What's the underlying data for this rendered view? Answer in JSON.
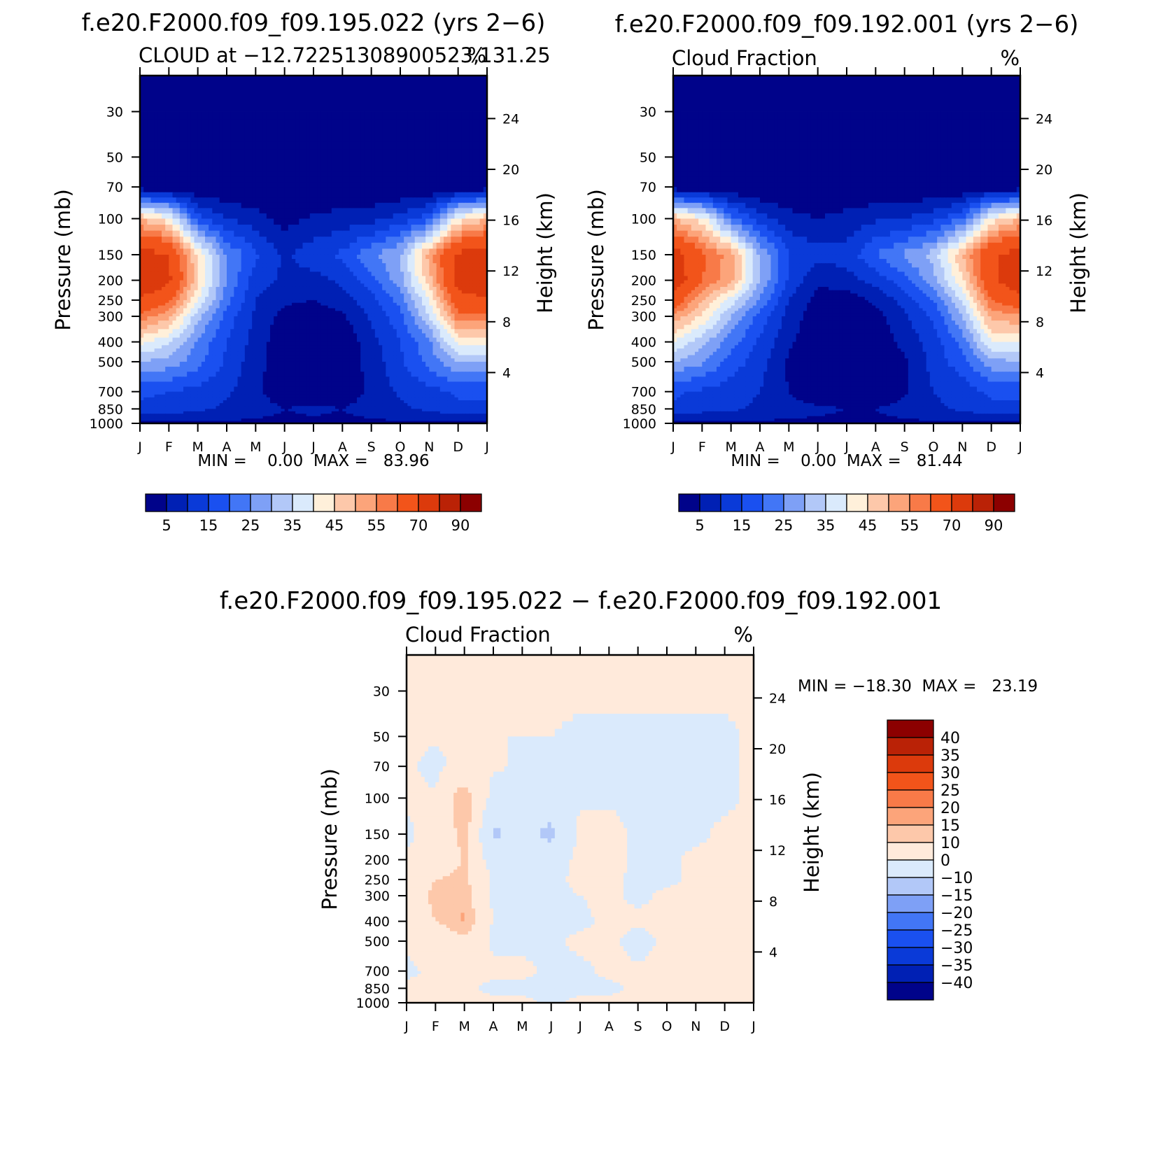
{
  "panels": [
    {
      "case_title": "f.e20.F2000.f09_f09.195.022 (yrs 2−6)",
      "left_string": "CLOUD at −12.72251308900523,131.25",
      "right_string": "%",
      "minmax": "MIN =    0.00  MAX =   83.96"
    },
    {
      "case_title": "f.e20.F2000.f09_f09.192.001 (yrs 2−6)",
      "left_string": "Cloud Fraction",
      "right_string": "%",
      "minmax": "MIN =    0.00  MAX =   81.44"
    },
    {
      "case_title": "f.e20.F2000.f09_f09.195.022 − f.e20.F2000.f09_f09.192.001",
      "left_string": "Cloud Fraction",
      "right_string": "%",
      "minmax": "MIN = −18.30  MAX =   23.19"
    }
  ],
  "colors": {
    "abs_scale": [
      "#00038a",
      "#0020b4",
      "#0a3ad8",
      "#1a50f0",
      "#4276f6",
      "#7ea0f6",
      "#b2c8f8",
      "#daeafc",
      "#fff0da",
      "#fdc8aa",
      "#fca47a",
      "#f87a48",
      "#f2541a",
      "#dc3a0c",
      "#ba2206",
      "#8c0000"
    ],
    "diff_scale": [
      "#00038a",
      "#0020b4",
      "#0a3ad8",
      "#1a50f0",
      "#4276f6",
      "#7ea0f6",
      "#b2c8f8",
      "#daeafc",
      "#ffeadb",
      "#fdc8aa",
      "#fca47a",
      "#f87a48",
      "#f2541a",
      "#dc3a0c",
      "#ba2206",
      "#8c0000"
    ]
  },
  "chart_data": [
    {
      "type": "heatmap",
      "title": "f.e20.F2000.f09_f09.195.022 (yrs 2−6)",
      "subtitle": "CLOUD at −12.72251308900523,131.25",
      "units": "%",
      "x": [
        "J",
        "F",
        "M",
        "A",
        "M",
        "J",
        "J",
        "A",
        "S",
        "O",
        "N",
        "D",
        "J"
      ],
      "ylabel": "Pressure (mb)",
      "yticks": [
        "30",
        "50",
        "70",
        "100",
        "150",
        "200",
        "250",
        "300",
        "400",
        "500",
        "700",
        "850",
        "1000"
      ],
      "ylabel_right": "Height (km)",
      "yticks_right": [
        "24",
        "20",
        "16",
        "12",
        "8",
        "4"
      ],
      "ylim": [
        1000,
        20
      ],
      "levels": [
        {
          "p": 30,
          "v": [
            0,
            0,
            0,
            0,
            0,
            0,
            0,
            0,
            0,
            0,
            0,
            0,
            0
          ]
        },
        {
          "p": 50,
          "v": [
            0,
            0,
            0,
            0,
            0,
            0,
            0,
            0,
            0,
            0,
            0,
            0,
            0
          ]
        },
        {
          "p": 70,
          "v": [
            1,
            1,
            0,
            0,
            0,
            0,
            0,
            0,
            0,
            0,
            0,
            1,
            1
          ]
        },
        {
          "p": 100,
          "v": [
            50,
            42,
            17,
            10,
            7,
            3,
            6,
            7,
            8,
            12,
            18,
            42,
            50
          ]
        },
        {
          "p": 150,
          "v": [
            75,
            70,
            45,
            25,
            16,
            9,
            13,
            16,
            24,
            30,
            52,
            72,
            75
          ]
        },
        {
          "p": 200,
          "v": [
            80,
            72,
            46,
            25,
            12,
            9,
            8,
            11,
            18,
            28,
            48,
            74,
            80
          ]
        },
        {
          "p": 250,
          "v": [
            68,
            62,
            40,
            22,
            10,
            6,
            5,
            8,
            13,
            22,
            40,
            66,
            68
          ]
        },
        {
          "p": 300,
          "v": [
            58,
            52,
            32,
            18,
            9,
            3,
            2,
            4,
            11,
            18,
            35,
            58,
            58
          ]
        },
        {
          "p": 400,
          "v": [
            42,
            36,
            24,
            15,
            8,
            1,
            0,
            1,
            8,
            15,
            24,
            42,
            42
          ]
        },
        {
          "p": 500,
          "v": [
            30,
            28,
            22,
            14,
            7,
            1,
            0,
            1,
            7,
            14,
            22,
            30,
            30
          ]
        },
        {
          "p": 700,
          "v": [
            16,
            15,
            13,
            11,
            6,
            2,
            1,
            2,
            6,
            11,
            13,
            16,
            16
          ]
        },
        {
          "p": 850,
          "v": [
            14,
            13,
            11,
            9,
            7,
            5,
            6,
            5,
            7,
            9,
            11,
            14,
            14
          ]
        },
        {
          "p": 1000,
          "v": [
            4,
            4,
            4,
            4,
            4,
            4,
            4,
            4,
            4,
            4,
            4,
            4,
            4
          ]
        }
      ],
      "colorbar": {
        "labels": [
          "5",
          "15",
          "25",
          "35",
          "45",
          "55",
          "70",
          "90"
        ]
      },
      "min": 0.0,
      "max": 83.96
    },
    {
      "type": "heatmap",
      "title": "f.e20.F2000.f09_f09.192.001 (yrs 2−6)",
      "subtitle": "Cloud Fraction",
      "units": "%",
      "x": [
        "J",
        "F",
        "M",
        "A",
        "M",
        "J",
        "J",
        "A",
        "S",
        "O",
        "N",
        "D",
        "J"
      ],
      "ylabel": "Pressure (mb)",
      "yticks": [
        "30",
        "50",
        "70",
        "100",
        "150",
        "200",
        "250",
        "300",
        "400",
        "500",
        "700",
        "850",
        "1000"
      ],
      "ylabel_right": "Height (km)",
      "yticks_right": [
        "24",
        "20",
        "16",
        "12",
        "8",
        "4"
      ],
      "ylim": [
        1000,
        20
      ],
      "levels": [
        {
          "p": 30,
          "v": [
            0,
            0,
            0,
            0,
            0,
            0,
            0,
            0,
            0,
            0,
            0,
            0,
            0
          ]
        },
        {
          "p": 50,
          "v": [
            0,
            0,
            0,
            0,
            0,
            0,
            0,
            0,
            0,
            0,
            0,
            0,
            0
          ]
        },
        {
          "p": 70,
          "v": [
            1,
            1,
            0,
            0,
            0,
            0,
            0,
            0,
            0,
            0,
            0,
            1,
            1
          ]
        },
        {
          "p": 100,
          "v": [
            50,
            42,
            22,
            12,
            7,
            5,
            7,
            9,
            10,
            13,
            20,
            42,
            50
          ]
        },
        {
          "p": 150,
          "v": [
            75,
            62,
            52,
            30,
            15,
            12,
            12,
            20,
            26,
            32,
            50,
            68,
            75
          ]
        },
        {
          "p": 200,
          "v": [
            78,
            60,
            52,
            30,
            14,
            6,
            8,
            12,
            18,
            28,
            44,
            68,
            78
          ]
        },
        {
          "p": 250,
          "v": [
            66,
            50,
            38,
            24,
            10,
            3,
            2,
            6,
            12,
            20,
            36,
            60,
            66
          ]
        },
        {
          "p": 300,
          "v": [
            54,
            44,
            30,
            18,
            8,
            2,
            1,
            3,
            9,
            16,
            30,
            52,
            54
          ]
        },
        {
          "p": 400,
          "v": [
            40,
            32,
            22,
            14,
            6,
            1,
            0,
            1,
            7,
            12,
            22,
            40,
            40
          ]
        },
        {
          "p": 500,
          "v": [
            30,
            26,
            18,
            12,
            4,
            1,
            0,
            1,
            4,
            12,
            18,
            28,
            30
          ]
        },
        {
          "p": 700,
          "v": [
            16,
            14,
            12,
            10,
            5,
            1,
            0,
            1,
            4,
            10,
            12,
            16,
            16
          ]
        },
        {
          "p": 850,
          "v": [
            14,
            12,
            11,
            9,
            7,
            6,
            5,
            5,
            7,
            9,
            11,
            14,
            14
          ]
        },
        {
          "p": 1000,
          "v": [
            4,
            4,
            4,
            4,
            4,
            4,
            4,
            4,
            4,
            4,
            4,
            4,
            4
          ]
        }
      ],
      "colorbar": {
        "labels": [
          "5",
          "15",
          "25",
          "35",
          "45",
          "55",
          "70",
          "90"
        ]
      },
      "min": 0.0,
      "max": 81.44
    },
    {
      "type": "heatmap",
      "title": "f.e20.F2000.f09_f09.195.022 − f.e20.F2000.f09_f09.192.001",
      "subtitle": "Cloud Fraction",
      "units": "%",
      "x": [
        "J",
        "F",
        "M",
        "A",
        "M",
        "J",
        "J",
        "A",
        "S",
        "O",
        "N",
        "D",
        "J"
      ],
      "ylabel": "Pressure (mb)",
      "yticks": [
        "30",
        "50",
        "70",
        "100",
        "150",
        "200",
        "250",
        "300",
        "400",
        "500",
        "700",
        "850",
        "1000"
      ],
      "ylabel_right": "Height (km)",
      "yticks_right": [
        "24",
        "20",
        "16",
        "12",
        "8",
        "4"
      ],
      "ylim": [
        1000,
        20
      ],
      "levels": [
        {
          "p": 30,
          "v": [
            1,
            1,
            1,
            1,
            1,
            1,
            1,
            1,
            1,
            1,
            1,
            1,
            1
          ]
        },
        {
          "p": 50,
          "v": [
            1,
            1,
            1,
            0,
            0,
            0,
            -1,
            -1,
            -1,
            -1,
            -1,
            -1,
            1
          ]
        },
        {
          "p": 70,
          "v": [
            1,
            -2,
            3,
            1,
            -1,
            0,
            -1,
            -1,
            -1,
            -1,
            -1,
            -1,
            1
          ]
        },
        {
          "p": 100,
          "v": [
            1,
            1,
            16,
            -3,
            -4,
            -3,
            -1,
            -1,
            -1,
            -1,
            -1,
            -1,
            1
          ]
        },
        {
          "p": 150,
          "v": [
            -1,
            2,
            13,
            -12,
            -6,
            -13,
            2,
            2,
            -1,
            -1,
            -1,
            1,
            1
          ]
        },
        {
          "p": 200,
          "v": [
            1,
            2,
            11,
            -5,
            -3,
            -4,
            2,
            2,
            -1,
            -1,
            1,
            1,
            1
          ]
        },
        {
          "p": 250,
          "v": [
            3,
            10,
            12,
            -1,
            -1,
            -1,
            1,
            1,
            -1,
            -1,
            1,
            1,
            1
          ]
        },
        {
          "p": 300,
          "v": [
            6,
            12,
            14,
            -1,
            -1,
            -1,
            0,
            1,
            -1,
            1,
            1,
            1,
            1
          ]
        },
        {
          "p": 400,
          "v": [
            2,
            10,
            16,
            -1,
            -1,
            -1,
            -1,
            1,
            1,
            1,
            1,
            1,
            1
          ]
        },
        {
          "p": 500,
          "v": [
            1,
            2,
            8,
            -1,
            -1,
            -1,
            1,
            1,
            -2,
            1,
            1,
            1,
            1
          ]
        },
        {
          "p": 700,
          "v": [
            -1,
            1,
            1,
            1,
            1,
            -1,
            -1,
            1,
            1,
            1,
            1,
            1,
            1
          ]
        },
        {
          "p": 850,
          "v": [
            1,
            1,
            1,
            -1,
            -1,
            -1,
            -1,
            -1,
            1,
            1,
            1,
            1,
            1
          ]
        },
        {
          "p": 1000,
          "v": [
            1,
            1,
            1,
            1,
            1,
            -1,
            1,
            1,
            1,
            1,
            1,
            1,
            1
          ]
        }
      ],
      "colorbar": {
        "labels": [
          "40",
          "35",
          "30",
          "25",
          "20",
          "15",
          "10",
          "0",
          "−10",
          "−15",
          "−20",
          "−25",
          "−30",
          "−35",
          "−40"
        ]
      },
      "min": -18.3,
      "max": 23.19
    }
  ]
}
